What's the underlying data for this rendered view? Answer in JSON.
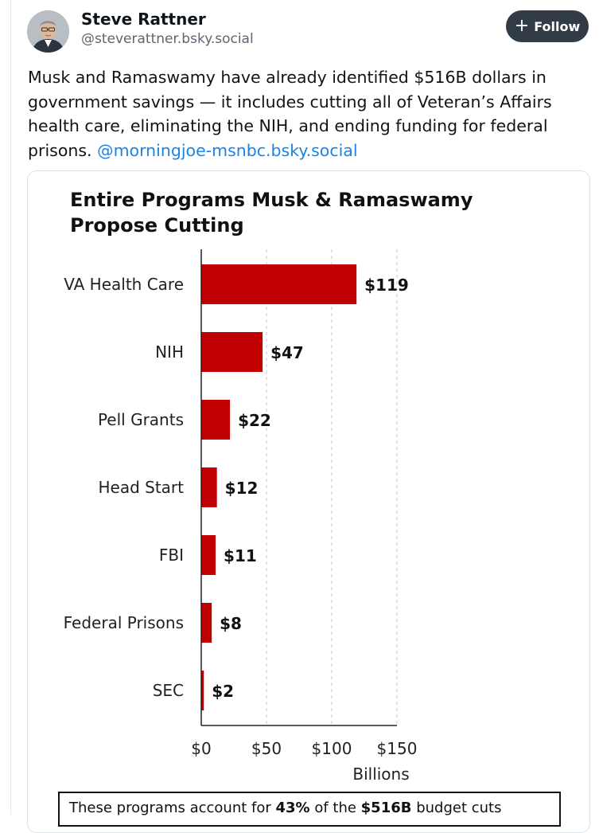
{
  "post": {
    "author_name": "Steve Rattner",
    "author_handle": "@steverattner.bsky.social",
    "follow_label": "Follow",
    "text": "Musk and Ramaswamy have already identified $516B dollars in government savings — it includes cutting all of Veteran’s Affairs health care, eliminating the NIH, and ending funding for federal prisons. ",
    "mention": "@morningjoe-msnbc.bsky.social"
  },
  "colors": {
    "bar": "#c00000",
    "mention": "#1c83e6",
    "follow_bg": "#313c47"
  },
  "chart_data": {
    "type": "bar",
    "orientation": "horizontal",
    "title": "Entire Programs Musk & Ramaswamy Propose Cutting",
    "categories": [
      "VA Health Care",
      "NIH",
      "Pell Grants",
      "Head Start",
      "FBI",
      "Federal Prisons",
      "SEC"
    ],
    "values": [
      119,
      47,
      22,
      12,
      11,
      8,
      2
    ],
    "data_labels": [
      "$119",
      "$47",
      "$22",
      "$12",
      "$11",
      "$8",
      "$2"
    ],
    "xlim": [
      0,
      150
    ],
    "xticks": [
      0,
      50,
      100,
      150
    ],
    "xtick_labels": [
      "$0",
      "$50",
      "$100",
      "$150"
    ],
    "xlabel": "Billions",
    "grid": "vertical dashed",
    "footer_parts": [
      {
        "text": "These programs account for ",
        "bold": false
      },
      {
        "text": "43%",
        "bold": true
      },
      {
        "text": " of the ",
        "bold": false
      },
      {
        "text": "$516B",
        "bold": true
      },
      {
        "text": " budget cuts",
        "bold": false
      }
    ]
  }
}
